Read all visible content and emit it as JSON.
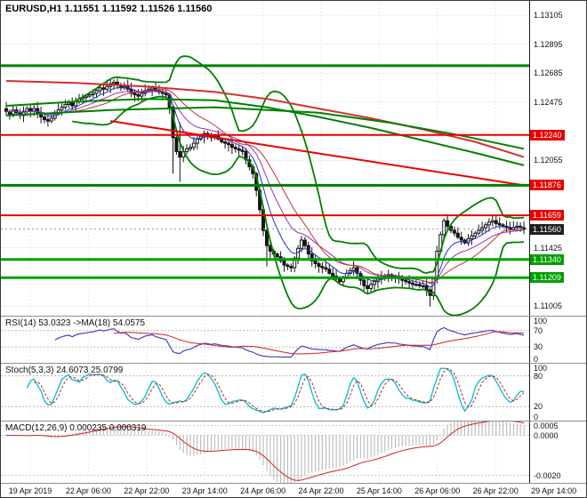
{
  "chart_data": {
    "type": "candlestick",
    "symbol": "EURUSD",
    "timeframe": "H1",
    "title": "EURUSD,H1 1.11551 1.11592 1.11526 1.11560",
    "ohlc": {
      "open": "1.11551",
      "high": "1.11592",
      "low": "1.11526",
      "close": "1.11560"
    },
    "current_price": 1.1156,
    "price_axis": {
      "top_price": 1.13208,
      "bottom_price": 1.10934,
      "grid_min": 1.11005,
      "grid_max": 1.13105,
      "grid_step": 0.0021,
      "visible_labels": [
        1.13105,
        1.12895,
        1.12685,
        1.12475,
        1.12055,
        1.11425,
        1.11005
      ]
    },
    "closes": [
      1.1241,
      1.1239,
      1.1242,
      1.124,
      1.1238,
      1.1241,
      1.1243,
      1.1241,
      1.1243,
      1.124,
      1.1237,
      1.1235,
      1.1234,
      1.1236,
      1.1239,
      1.1242,
      1.1244,
      1.1246,
      1.1247,
      1.1245,
      1.1248,
      1.125,
      1.1251,
      1.1252,
      1.1253,
      1.1254,
      1.1256,
      1.1258,
      1.1257,
      1.1259,
      1.1261,
      1.1262,
      1.126,
      1.1258,
      1.1259,
      1.1257,
      1.1254,
      1.1253,
      1.1252,
      1.1254,
      1.1256,
      1.1257,
      1.1258,
      1.1256,
      1.1255,
      1.1254,
      1.1253,
      1.1244,
      1.1222,
      1.1212,
      1.1208,
      1.1212,
      1.1214,
      1.1215,
      1.1218,
      1.1221,
      1.1223,
      1.1225,
      1.1224,
      1.1222,
      1.1223,
      1.1221,
      1.1219,
      1.1218,
      1.1217,
      1.1215,
      1.1214,
      1.1213,
      1.1212,
      1.1206,
      1.1201,
      1.1196,
      1.1184,
      1.117,
      1.1155,
      1.1144,
      1.114,
      1.1138,
      1.1136,
      1.1133,
      1.113,
      1.1129,
      1.1128,
      1.1135,
      1.1142,
      1.1148,
      1.1144,
      1.1138,
      1.1133,
      1.1131,
      1.1129,
      1.1128,
      1.1127,
      1.1124,
      1.1122,
      1.112,
      1.1118,
      1.1121,
      1.1124,
      1.1126,
      1.1128,
      1.1124,
      1.1119,
      1.1115,
      1.1113,
      1.1116,
      1.1118,
      1.112,
      1.1121,
      1.1122,
      1.1123,
      1.1122,
      1.1122,
      1.112,
      1.1119,
      1.1118,
      1.1117,
      1.1116,
      1.1116,
      1.1115,
      1.1115,
      1.1112,
      1.1108,
      1.112,
      1.114,
      1.1152,
      1.1162,
      1.1158,
      1.1155,
      1.1153,
      1.115,
      1.1148,
      1.1146,
      1.1149,
      1.1151,
      1.1153,
      1.1155,
      1.1157,
      1.1159,
      1.1161,
      1.1162,
      1.116,
      1.1159,
      1.1158,
      1.1157,
      1.1156,
      1.1157,
      1.1158,
      1.1157,
      1.1156
    ],
    "wick_overrides": [
      {
        "bar": 48,
        "low": 1.1196
      },
      {
        "bar": 50,
        "high": 1.1233,
        "low": 1.119
      },
      {
        "bar": 75,
        "low": 1.1129
      },
      {
        "bar": 122,
        "low": 1.11
      }
    ],
    "levels": [
      {
        "price": 1.1274,
        "color": "#008000",
        "width": 3,
        "chip": null
      },
      {
        "price": 1.1224,
        "color": "#e80000",
        "width": 2,
        "chip": "#e80000"
      },
      {
        "price": 1.11876,
        "color": "#008000",
        "width": 3,
        "chip": "#e80000"
      },
      {
        "price": 1.11659,
        "color": "#e80000",
        "width": 2,
        "chip": "#e80000"
      },
      {
        "price": 1.1134,
        "color": "#00a000",
        "width": 3,
        "chip": "#00a000"
      },
      {
        "price": 1.11209,
        "color": "#00a000",
        "width": 3,
        "chip": "#00a000"
      }
    ],
    "trend_curves": [
      {
        "name": "long-ma-red",
        "color": "#d23030",
        "width": 2,
        "points": [
          [
            0,
            1.1263
          ],
          [
            20,
            1.12615
          ],
          [
            40,
            1.1259
          ],
          [
            60,
            1.1255
          ],
          [
            75,
            1.125
          ],
          [
            90,
            1.1243
          ],
          [
            105,
            1.1236
          ],
          [
            120,
            1.1228
          ],
          [
            135,
            1.1219
          ],
          [
            149,
            1.1208
          ]
        ]
      },
      {
        "name": "long-ma-green-1",
        "color": "#008000",
        "width": 2,
        "points": [
          [
            0,
            1.1245
          ],
          [
            20,
            1.1248
          ],
          [
            40,
            1.125
          ],
          [
            60,
            1.1249
          ],
          [
            75,
            1.1244
          ],
          [
            90,
            1.1237
          ],
          [
            105,
            1.1229
          ],
          [
            120,
            1.122
          ],
          [
            135,
            1.1211
          ],
          [
            149,
            1.1202
          ]
        ]
      },
      {
        "name": "long-ma-green-2",
        "color": "#008000",
        "width": 2,
        "points": [
          [
            0,
            1.1238
          ],
          [
            30,
            1.1242
          ],
          [
            60,
            1.1244
          ],
          [
            90,
            1.124
          ],
          [
            110,
            1.1233
          ],
          [
            130,
            1.1224
          ],
          [
            149,
            1.1214
          ]
        ]
      },
      {
        "name": "descending-trendline",
        "color": "#e80000",
        "width": 2,
        "points": [
          [
            30,
            1.1234
          ],
          [
            149,
            1.11876
          ]
        ]
      }
    ],
    "overlay_colors": {
      "bollinger": "#008000",
      "bb_mid": "#c03030",
      "ema_fast": "#2233cc",
      "ema_mid": "#9933aa",
      "candle_up": "#ffffff",
      "candle_down": "#151515",
      "wick": "#151515"
    },
    "panels": {
      "rsi": {
        "label": "RSI(14) 53.0323 ->MA(18) 54.0575",
        "period": 14,
        "ma_period": 18,
        "axis_values": [
          100,
          70,
          30,
          0
        ],
        "grid_values": [
          70,
          30
        ],
        "line_color": "#4444bb",
        "ma_color": "#cc2222"
      },
      "stoch": {
        "label": "Stoch(5,3,3) 24.6073 25.0799",
        "k_period": 5,
        "slowing": 3,
        "d_period": 3,
        "axis_values": [
          100,
          80,
          20,
          0
        ],
        "grid_values": [
          80,
          20
        ],
        "k_color": "#00bcd0",
        "d_color": "#cc2222"
      },
      "macd": {
        "label": "MACD(12,26,9) 0.000235 0.000319",
        "fast": 12,
        "slow": 26,
        "signal": 9,
        "axis_values": [
          0.0005,
          0.0,
          -0.002
        ],
        "axis_labels": [
          "0.0005",
          "0.0000",
          "-0.0020"
        ],
        "range": [
          -0.0022,
          0.0006
        ],
        "hist_color": "#b4b4b4",
        "signal_color": "#cc2222"
      }
    }
  },
  "time_axis": {
    "labels": [
      "19 Apr 2019",
      "22 Apr 06:00",
      "22 Apr 22:00",
      "23 Apr 14:00",
      "24 Apr 06:00",
      "24 Apr 22:00",
      "25 Apr 14:00",
      "26 Apr 06:00",
      "26 Apr 22:00",
      "29 Apr 14:00"
    ]
  }
}
